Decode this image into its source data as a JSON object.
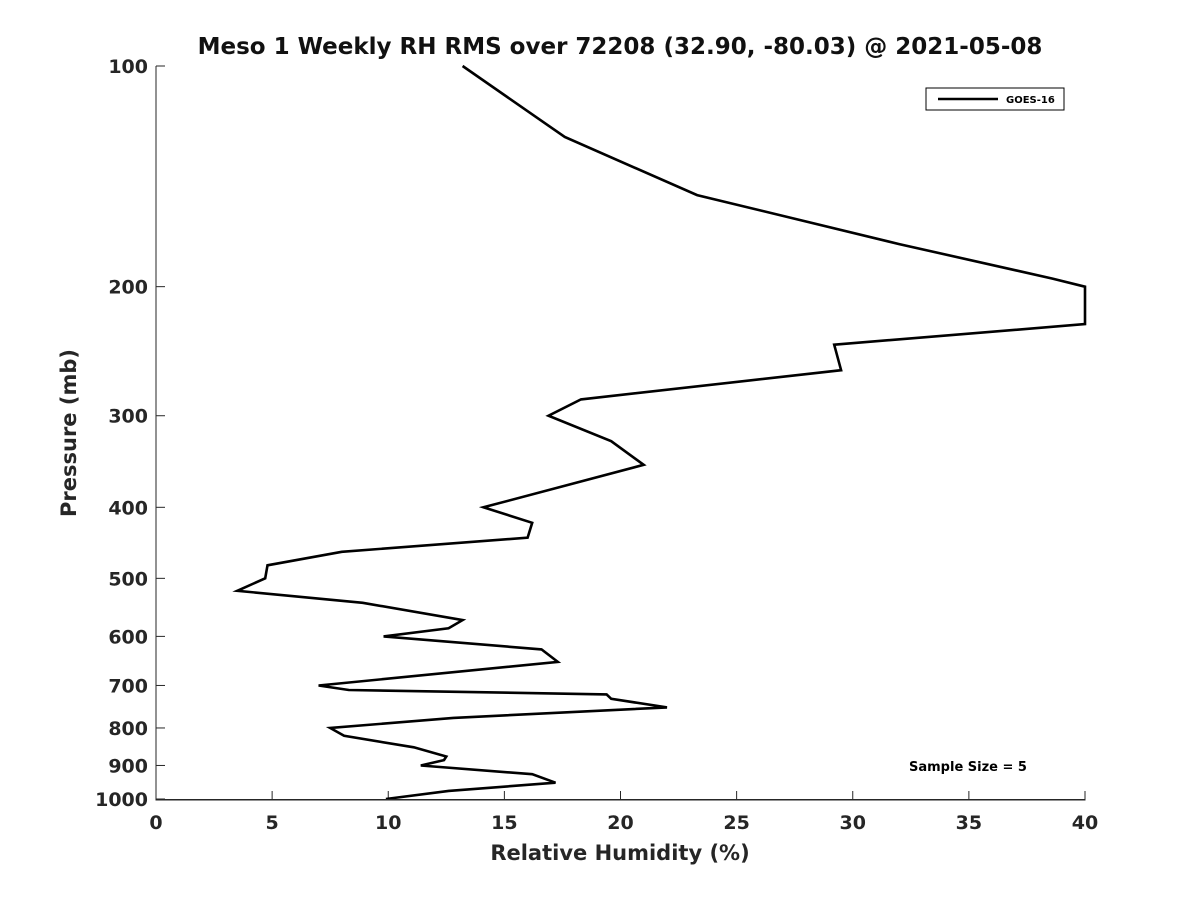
{
  "chart_data": {
    "type": "line",
    "title": "Meso 1 Weekly RH RMS over 72208 (32.90, -80.03) @ 2021-05-08",
    "xlabel": "Relative Humidity (%)",
    "ylabel": "Pressure (mb)",
    "xlim": [
      0,
      40
    ],
    "ylim": [
      100,
      1000
    ],
    "yscale": "log",
    "y_reversed": true,
    "xticks": [
      0,
      5,
      10,
      15,
      20,
      25,
      30,
      35,
      40
    ],
    "yticks": [
      100,
      200,
      300,
      400,
      500,
      600,
      700,
      800,
      900,
      1000
    ],
    "grid": false,
    "legend_position": "top-right",
    "series": [
      {
        "name": "GOES-16",
        "color": "#000000",
        "points": [
          [
            13.2,
            100
          ],
          [
            17.6,
            125
          ],
          [
            23.3,
            150
          ],
          [
            32.0,
            175
          ],
          [
            38.6,
            195
          ],
          [
            40.0,
            200
          ],
          [
            40.0,
            225
          ],
          [
            29.2,
            240
          ],
          [
            29.5,
            260
          ],
          [
            18.3,
            285
          ],
          [
            16.9,
            300
          ],
          [
            19.6,
            325
          ],
          [
            21.0,
            350
          ],
          [
            14.1,
            400
          ],
          [
            16.2,
            420
          ],
          [
            16.0,
            440
          ],
          [
            8.0,
            460
          ],
          [
            4.8,
            480
          ],
          [
            4.7,
            500
          ],
          [
            3.5,
            520
          ],
          [
            8.9,
            540
          ],
          [
            13.2,
            570
          ],
          [
            12.6,
            585
          ],
          [
            9.8,
            600
          ],
          [
            16.6,
            625
          ],
          [
            17.3,
            650
          ],
          [
            7.0,
            700
          ],
          [
            8.3,
            710
          ],
          [
            19.4,
            720
          ],
          [
            19.6,
            730
          ],
          [
            22.0,
            750
          ],
          [
            12.8,
            775
          ],
          [
            7.5,
            800
          ],
          [
            8.1,
            820
          ],
          [
            11.1,
            850
          ],
          [
            12.5,
            875
          ],
          [
            12.4,
            885
          ],
          [
            11.4,
            900
          ],
          [
            16.2,
            925
          ],
          [
            17.2,
            950
          ],
          [
            12.6,
            975
          ],
          [
            9.9,
            1000
          ]
        ]
      }
    ],
    "annotation": "Sample Size = 5"
  }
}
